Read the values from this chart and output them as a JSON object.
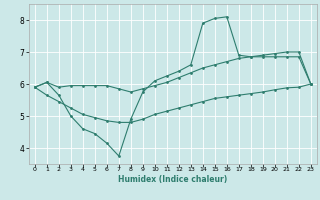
{
  "xlabel": "Humidex (Indice chaleur)",
  "bg_color": "#cce8e8",
  "grid_color": "#ffffff",
  "line_color": "#2e7d6e",
  "xlim": [
    -0.5,
    23.5
  ],
  "ylim": [
    3.5,
    8.5
  ],
  "yticks": [
    4,
    5,
    6,
    7,
    8
  ],
  "xticks": [
    0,
    1,
    2,
    3,
    4,
    5,
    6,
    7,
    8,
    9,
    10,
    11,
    12,
    13,
    14,
    15,
    16,
    17,
    18,
    19,
    20,
    21,
    22,
    23
  ],
  "spike_x": [
    0,
    1,
    2,
    3,
    4,
    5,
    6,
    7,
    8,
    9,
    10,
    11,
    12,
    13,
    14,
    15,
    16,
    17,
    18,
    19,
    20,
    21,
    22,
    23
  ],
  "spike_y": [
    5.9,
    6.05,
    5.65,
    5.0,
    4.6,
    4.45,
    4.15,
    3.75,
    4.9,
    5.75,
    6.1,
    6.25,
    6.4,
    6.6,
    7.9,
    8.05,
    8.1,
    6.9,
    6.85,
    6.85,
    6.85,
    6.85,
    6.85,
    6.0
  ],
  "diag_x": [
    0,
    1,
    2,
    3,
    4,
    5,
    6,
    7,
    8,
    9,
    10,
    11,
    12,
    13,
    14,
    15,
    16,
    17,
    18,
    19,
    20,
    21,
    22,
    23
  ],
  "diag_y": [
    5.9,
    6.05,
    5.9,
    5.95,
    5.95,
    5.95,
    5.95,
    5.85,
    5.75,
    5.85,
    5.95,
    6.05,
    6.2,
    6.35,
    6.5,
    6.6,
    6.7,
    6.8,
    6.85,
    6.9,
    6.95,
    7.0,
    7.0,
    6.0
  ],
  "bot_x": [
    0,
    1,
    2,
    3,
    4,
    5,
    6,
    7,
    8,
    9,
    10,
    11,
    12,
    13,
    14,
    15,
    16,
    17,
    18,
    19,
    20,
    21,
    22,
    23
  ],
  "bot_y": [
    5.9,
    5.65,
    5.45,
    5.25,
    5.05,
    4.95,
    4.85,
    4.8,
    4.8,
    4.9,
    5.05,
    5.15,
    5.25,
    5.35,
    5.45,
    5.55,
    5.6,
    5.65,
    5.7,
    5.75,
    5.82,
    5.88,
    5.9,
    6.0
  ]
}
